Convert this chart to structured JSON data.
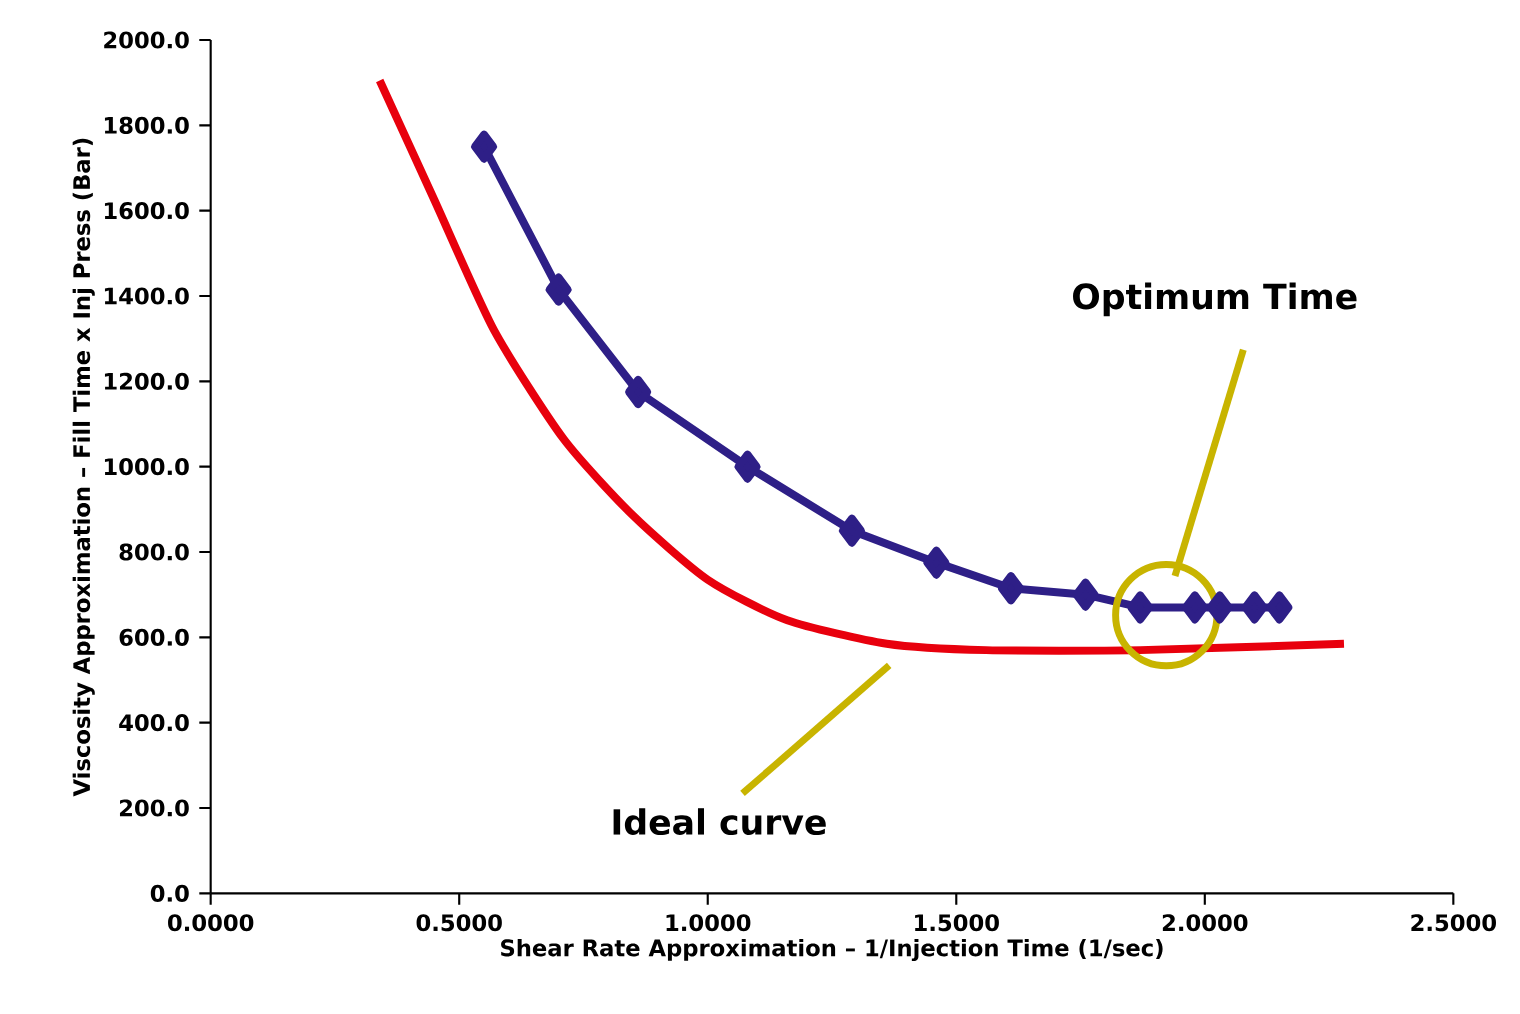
{
  "chart_data": {
    "type": "line",
    "xlabel": "Shear Rate Approximation – 1/Injection Time (1/sec)",
    "ylabel": "Viscosity Approximation – Fill Time x Inj Press (Bar)",
    "xlim": [
      0,
      2.5
    ],
    "ylim": [
      0,
      2000
    ],
    "xticks": [
      {
        "value": 0,
        "label": "0.0000"
      },
      {
        "value": 0.5,
        "label": "0.5000"
      },
      {
        "value": 1,
        "label": "1.0000"
      },
      {
        "value": 1.5,
        "label": "1.5000"
      },
      {
        "value": 2,
        "label": "2.0000"
      },
      {
        "value": 2.5,
        "label": "2.5000"
      }
    ],
    "yticks": [
      {
        "value": 0,
        "label": "0.0"
      },
      {
        "value": 200,
        "label": "200.0"
      },
      {
        "value": 400,
        "label": "400.0"
      },
      {
        "value": 600,
        "label": "600.0"
      },
      {
        "value": 800,
        "label": "800.0"
      },
      {
        "value": 1000,
        "label": "1000.0"
      },
      {
        "value": 1200,
        "label": "1200.0"
      },
      {
        "value": 1400,
        "label": "1400.0"
      },
      {
        "value": 1600,
        "label": "1600.0"
      },
      {
        "value": 1800,
        "label": "1800.0"
      },
      {
        "value": 2000,
        "label": "2000.0"
      }
    ],
    "grid": false,
    "series": [
      {
        "color": "#2e1f87",
        "marker": "diamond",
        "x": [
          0.55,
          0.7,
          0.86,
          1.08,
          1.29,
          1.46,
          1.61,
          1.76,
          1.87,
          1.98,
          2.03,
          2.1,
          2.15
        ],
        "values": [
          1750,
          1415,
          1175,
          1000,
          850,
          775,
          715,
          700,
          670,
          670,
          670,
          670,
          670
        ]
      },
      {
        "color": "#e8000d",
        "marker": "none",
        "x": [
          0.34,
          0.45,
          0.57,
          0.71,
          0.85,
          1.0,
          1.16,
          1.36,
          1.56,
          1.87,
          2.28
        ],
        "values": [
          1905,
          1625,
          1320,
          1065,
          885,
          735,
          640,
          585,
          570,
          570,
          585
        ]
      }
    ],
    "annotations": [
      "Optimum Time",
      "Ideal curve"
    ]
  }
}
